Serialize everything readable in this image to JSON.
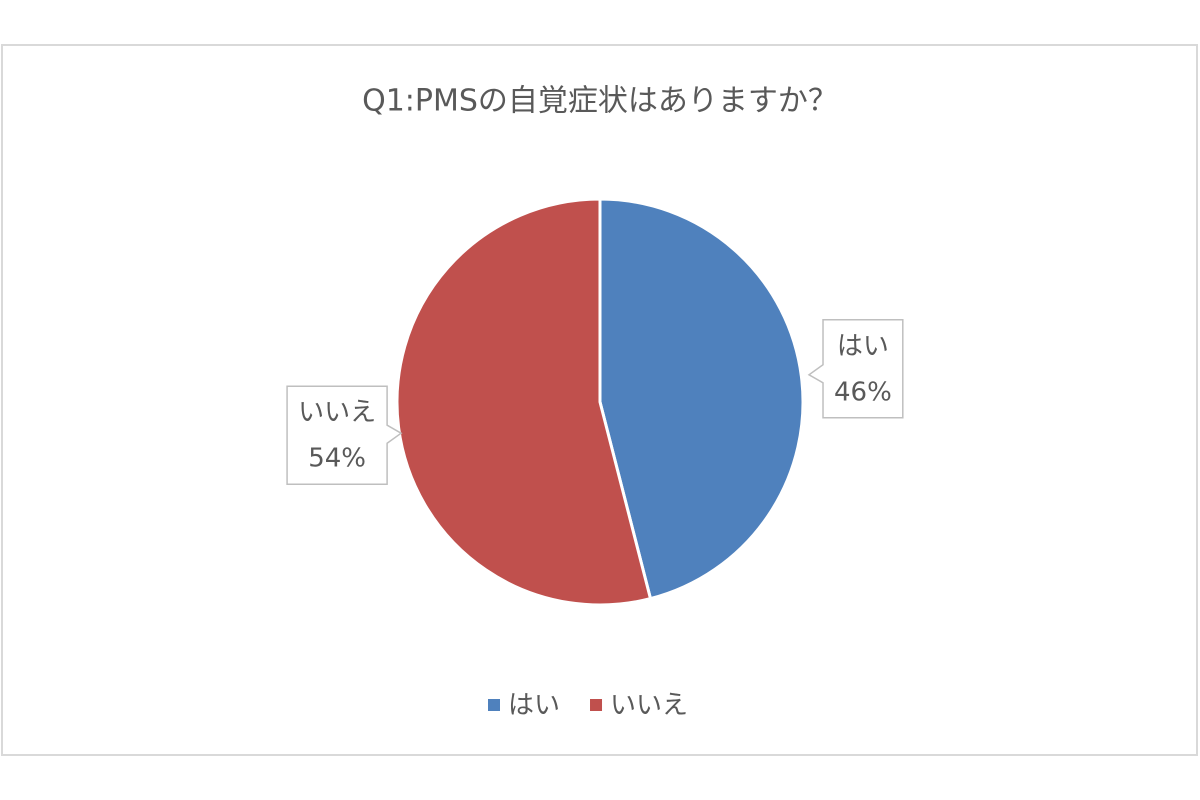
{
  "chart_data": {
    "type": "pie",
    "title": "Q1:PMSの自覚症状はありますか？",
    "categories": [
      "はい",
      "いいえ"
    ],
    "values": [
      46,
      54
    ],
    "value_labels": [
      "46%",
      "54%"
    ],
    "colors": [
      "#4f81bd",
      "#c0504d"
    ],
    "legend": "bottom"
  }
}
